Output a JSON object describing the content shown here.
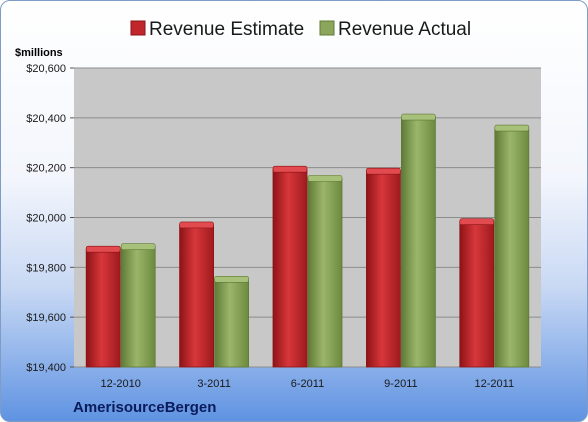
{
  "chart_data": {
    "type": "bar",
    "categories": [
      "12-2010",
      "3-2011",
      "6-2011",
      "9-2011",
      "12-2011"
    ],
    "series": [
      {
        "name": "Revenue Estimate",
        "values": [
          19873,
          19970,
          20194,
          20186,
          19983
        ]
      },
      {
        "name": "Revenue Actual",
        "values": [
          19883,
          19752,
          20157,
          20403,
          20359
        ]
      }
    ],
    "ylim": [
      19400,
      20600
    ],
    "yticks": [
      19400,
      19600,
      19800,
      20000,
      20200,
      20400,
      20600
    ],
    "ytick_labels": [
      "$19,400",
      "$19,600",
      "$19,800",
      "$20,000",
      "$20,200",
      "$20,400",
      "$20,600"
    ],
    "ylabel": "$millions",
    "grid": true,
    "legend_position": "top",
    "colors": {
      "estimate": "#c0262b",
      "estimate_light": "#e14a4e",
      "estimate_dark": "#8d1316",
      "actual": "#8ba55a",
      "actual_light": "#a7c07a",
      "actual_dark": "#5f7a36",
      "plot_background": "#c8c8c8",
      "gridline": "#8c8c8c"
    }
  },
  "company": "AmerisourceBergen"
}
